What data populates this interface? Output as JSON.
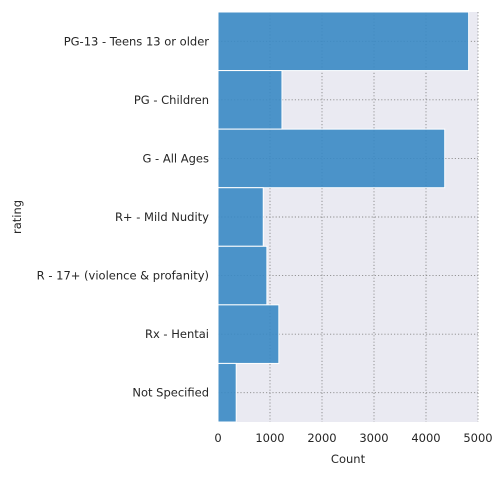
{
  "chart_data": {
    "type": "bar",
    "orientation": "horizontal",
    "categories": [
      "PG-13 - Teens 13 or older",
      "PG - Children",
      "G - All Ages",
      "R+ - Mild Nudity",
      "R - 17+ (violence & profanity)",
      "Rx - Hentai",
      "Not Specified"
    ],
    "values": [
      4820,
      1230,
      4360,
      870,
      940,
      1170,
      350
    ],
    "xlabel": "Count",
    "ylabel": "rating",
    "xlim": [
      0,
      5000
    ],
    "xticks": [
      0,
      1000,
      2000,
      3000,
      4000,
      5000
    ],
    "grid": true,
    "grid_style": "dotted",
    "colors": {
      "bar": "#3a8ac4",
      "bar_edge": "#ffffff",
      "plot_background": "#eaeaf2",
      "grid": "#8a8a8a"
    }
  }
}
